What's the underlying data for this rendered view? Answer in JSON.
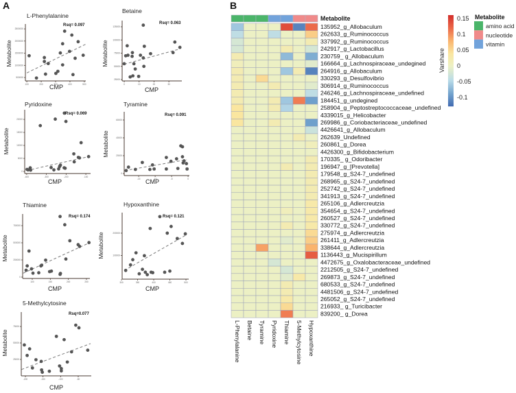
{
  "panels": {
    "a": "A",
    "b": "B"
  },
  "axis_labels": {
    "y": "Metabolite",
    "x": "CMP"
  },
  "chart_data": [
    {
      "type": "scatter",
      "title": "L-Phenylalanine",
      "rsq": "Rsq= 0.097",
      "xlabel": "CMP",
      "ylabel": "Metabolite",
      "xlim": [
        90,
        510
      ],
      "ylim": [
        360000,
        2700000
      ],
      "xticks": [
        100,
        200,
        300,
        400,
        500
      ],
      "yticks": [
        500000,
        1000000,
        1500000,
        2000000,
        2500000
      ],
      "points": [
        [
          116,
          1396000
        ],
        [
          167,
          480000
        ],
        [
          222,
          1320000
        ],
        [
          222,
          1160000
        ],
        [
          230,
          640000
        ],
        [
          249,
          1075000
        ],
        [
          302,
          670000
        ],
        [
          316,
          755000
        ],
        [
          333,
          1510000
        ],
        [
          349,
          1887000
        ],
        [
          349,
          1020000
        ],
        [
          363,
          2406000
        ],
        [
          397,
          1575000
        ],
        [
          413,
          2245000
        ],
        [
          421,
          620000
        ],
        [
          436,
          1292000
        ],
        [
          457,
          1972000
        ],
        [
          492,
          1415000
        ]
      ],
      "fit_line": [
        [
          100,
          690000
        ],
        [
          510,
          1870000
        ]
      ]
    },
    {
      "type": "scatter",
      "title": "Betaine",
      "rsq": "Rsq= 0.063",
      "xlabel": "CMP",
      "ylabel": "Metabolite",
      "xlim": [
        -1.4,
        38.7
      ],
      "ylim": [
        22400,
        136700
      ],
      "xticks": [
        0,
        10,
        20,
        30
      ],
      "yticks": [
        25000,
        50000,
        75000,
        100000,
        125000
      ],
      "points": [
        [
          0,
          55000
        ],
        [
          1,
          70000
        ],
        [
          2,
          89000
        ],
        [
          2.5,
          71000
        ],
        [
          4,
          30000
        ],
        [
          5.5,
          76000
        ],
        [
          5.3,
          69000
        ],
        [
          5.8,
          32000
        ],
        [
          6.5,
          55000
        ],
        [
          7.4,
          45000
        ],
        [
          9.7,
          31000
        ],
        [
          10.9,
          71000
        ],
        [
          12.8,
          128000
        ],
        [
          12.8,
          66000
        ],
        [
          13.2,
          50000
        ],
        [
          13.5,
          88000
        ],
        [
          17.7,
          74000
        ],
        [
          32.8,
          76000
        ],
        [
          34,
          96000
        ],
        [
          37.4,
          86000
        ]
      ],
      "fit_line": [
        [
          0,
          54000
        ],
        [
          37.4,
          83000
        ]
      ]
    },
    {
      "type": "scatter",
      "title": "Pyridoxine",
      "rsq": "Rsq= 0.069",
      "xlabel": "CMP",
      "ylabel": "Metabolite",
      "xlim": [
        -410,
        -76
      ],
      "ylim": [
        -800,
        23700
      ],
      "xticks": [
        -400,
        -300,
        -200,
        -100
      ],
      "yticks": [
        0,
        5000,
        10000,
        15000,
        20000
      ],
      "points": [
        [
          -398,
          790
        ],
        [
          -393,
          600
        ],
        [
          -382,
          1400
        ],
        [
          -380,
          500
        ],
        [
          -331,
          17600
        ],
        [
          -276,
          1490
        ],
        [
          -262,
          600
        ],
        [
          -255,
          20100
        ],
        [
          -238,
          970
        ],
        [
          -233,
          1900
        ],
        [
          -229,
          2400
        ],
        [
          -210,
          1400
        ],
        [
          -209,
          22400
        ],
        [
          -205,
          1230
        ],
        [
          -201,
          19200
        ],
        [
          -161,
          6750
        ],
        [
          -159,
          3700
        ],
        [
          -138,
          5400
        ],
        [
          -132,
          5200
        ],
        [
          -124,
          11050
        ],
        [
          -86,
          5700
        ]
      ],
      "fit_line": [
        [
          -400,
          350
        ],
        [
          -85,
          5700
        ]
      ]
    },
    {
      "type": "scatter",
      "title": "Tyramine",
      "rsq": "Rsq= 0.091",
      "xlabel": "CMP",
      "ylabel": "Metabolite",
      "xlim": [
        -19.4,
        0.4
      ],
      "ylim": [
        -2300,
        69200
      ],
      "xticks": [
        -15,
        -10,
        -5,
        0
      ],
      "yticks": [
        0,
        20000,
        40000,
        60000
      ],
      "points": [
        [
          -18.8,
          3350
        ],
        [
          -18.1,
          7200
        ],
        [
          -16,
          4600
        ],
        [
          -13.9,
          12400
        ],
        [
          -11.6,
          4600
        ],
        [
          -10.8,
          9700
        ],
        [
          -10.3,
          5100
        ],
        [
          -6.6,
          18000
        ],
        [
          -6.6,
          5100
        ],
        [
          -5.2,
          13700
        ],
        [
          -3.5,
          16500
        ],
        [
          -3.1,
          5700
        ],
        [
          -2.2,
          31000
        ],
        [
          -1.7,
          30000
        ],
        [
          -1.7,
          18800
        ],
        [
          -1.5,
          11900
        ],
        [
          -1.2,
          14200
        ],
        [
          -0.5,
          11100
        ],
        [
          -0.3,
          5100
        ]
      ],
      "fit_line": [
        [
          -19.2,
          3350
        ],
        [
          -0.4,
          15500
        ]
      ]
    },
    {
      "type": "scatter",
      "title": "Thiamine",
      "rsq": "Rsq= 0.174",
      "xlabel": "CMP",
      "ylabel": "Metabolite",
      "xlim": [
        73.4,
        259.5
      ],
      "ylim": [
        -20000,
        920000
      ],
      "xticks": [
        100,
        150,
        200,
        250
      ],
      "yticks": [
        0,
        250000,
        500000,
        750000
      ],
      "points": [
        [
          83,
          100000
        ],
        [
          86,
          163000
        ],
        [
          91,
          380000
        ],
        [
          98,
          120000
        ],
        [
          102,
          57000
        ],
        [
          118,
          63000
        ],
        [
          124,
          163000
        ],
        [
          126,
          173000
        ],
        [
          137,
          247000
        ],
        [
          148,
          80000
        ],
        [
          153,
          87000
        ],
        [
          177,
          40000
        ],
        [
          178,
          53000
        ],
        [
          177,
          883000
        ],
        [
          190,
          763000
        ],
        [
          193,
          263000
        ],
        [
          204,
          530000
        ],
        [
          227,
          473000
        ],
        [
          231,
          447000
        ],
        [
          257,
          503000
        ]
      ],
      "fit_line": [
        [
          75,
          57000
        ],
        [
          257,
          497000
        ]
      ]
    },
    {
      "type": "scatter",
      "title": "Hypoxanthine",
      "rsq": "Rsq= 0.121",
      "xlabel": "CMP",
      "ylabel": "Metabolite",
      "xlim": [
        302,
        508.5
      ],
      "ylim": [
        -6000,
        292000
      ],
      "xticks": [
        300,
        350,
        400,
        450,
        500
      ],
      "yticks": [
        100000,
        200000
      ],
      "points": [
        [
          313,
          33000
        ],
        [
          328,
          58000
        ],
        [
          335,
          81000
        ],
        [
          345,
          112000
        ],
        [
          355,
          18000
        ],
        [
          365,
          38000
        ],
        [
          371,
          99000
        ],
        [
          374,
          25000
        ],
        [
          380,
          14000
        ],
        [
          389,
          221000
        ],
        [
          392,
          25000
        ],
        [
          397,
          23000
        ],
        [
          419,
          274000
        ],
        [
          434,
          25000
        ],
        [
          442,
          200000
        ],
        [
          450,
          30000
        ],
        [
          454,
          230000
        ],
        [
          473,
          176000
        ],
        [
          489,
          154000
        ],
        [
          498,
          197000
        ]
      ],
      "fit_line": [
        [
          309,
          33000
        ],
        [
          498,
          190000
        ]
      ]
    },
    {
      "type": "scatter",
      "title": "5-Methylcytosine",
      "rsq": "Rsq=0.077",
      "xlabel": "CMP",
      "ylabel": "Metabolite",
      "xlim": [
        -211.7,
        -13
      ],
      "ylim": [
        0,
        96900
      ],
      "xticks": [
        -200,
        -150,
        -100,
        -50
      ],
      "yticks": [
        25000,
        50000,
        75000
      ],
      "points": [
        [
          -203,
          47000
        ],
        [
          -195,
          31000
        ],
        [
          -188,
          41000
        ],
        [
          -180,
          12000
        ],
        [
          -170,
          24500
        ],
        [
          -155,
          22000
        ],
        [
          -154,
          9000
        ],
        [
          -152,
          5500
        ],
        [
          -132,
          7000
        ],
        [
          -112,
          60000
        ],
        [
          -103,
          15000
        ],
        [
          -98,
          11000
        ],
        [
          -98,
          7500
        ],
        [
          -90,
          55000
        ],
        [
          -81,
          21000
        ],
        [
          -69,
          36500
        ],
        [
          -57,
          77000
        ],
        [
          -48,
          73000
        ],
        [
          -23,
          39000
        ]
      ],
      "fit_line": [
        [
          -211,
          9700
        ],
        [
          -15,
          49000
        ]
      ]
    },
    {
      "type": "heatmap",
      "title": "Metabolite",
      "colorbar_label": "Varshare",
      "colorbar_range": [
        -0.128,
        0.161
      ],
      "colorbar_ticks": [
        0.15,
        0.1,
        0.05,
        0,
        -0.05,
        -0.1
      ],
      "columns": [
        "L-Phenylalanine",
        "Betaine",
        "Tyramine",
        "Pyridoxine",
        "Thiamine",
        "5-Methylcytosine",
        "Hypoxanthine"
      ],
      "column_groups": [
        "amino acid",
        "amino acid",
        "amino acid",
        "vitamin",
        "vitamin",
        "nucleotide",
        "nucleotide"
      ],
      "legend": [
        {
          "label": "amino acid",
          "color": "#4bb56a"
        },
        {
          "label": "nucleotide",
          "color": "#f08a8a"
        },
        {
          "label": "vitamin",
          "color": "#72a3db"
        }
      ],
      "rows": [
        "135952_g_Allobaculum",
        "262633_g_Ruminococcus",
        "337992_g_Ruminococcus",
        "242917_g_Lactobacillus",
        "230759_ g_Allobaculum",
        "166664_g_Lachnospiraceae_undegined",
        "264916_g_Allobaculum",
        "330293_g_Desulfovibrio",
        "306914_g_Ruminococcus",
        "246246_g_Lachnospiraceae_undefined",
        "184451_g_undegined",
        "258904_g_Peptostreptococcaceae_undefined",
        "4339015_g_Helicobacter",
        "269986_g_Coriobacteriaceae_undefined",
        "4426641_g_Allobaculum",
        "262639_Undefined",
        "260861_g_Dorea",
        "4426300_g_Bifidobacterium",
        "170335_ g_Odoribacter",
        "196947_g_[Prevotella]",
        "179548_g_S24-7_undefined",
        "268965_g_S24-7_undefined",
        "252742_g_S24-7_undefined",
        "341913_g_S24-7_undefined",
        "265106_g_Adlercreutzia",
        "354654_g_S24-7_undefined",
        "260527_g_S24-7_undefined",
        "330772_g_S24-7_undefined",
        "275974_g_Adlercreutzia",
        "261411_g_Adlercreutzia",
        "338644_g_Adlercreutzia",
        "1136443_g_Mucispirillum",
        "4472675_g_Oxalobacteraceae_undefined",
        "2212505_g_S24-7_undefined",
        "269873_g_S24-7_undefined",
        "680533_g_S24-7_undefined",
        "4481506_g_S24-7_undefined",
        "265052_g_S24-7_undefined",
        "216933_ g_Turicibacter",
        "839200_ g_Dorea"
      ],
      "values": [
        [
          -0.06,
          0,
          0,
          0,
          0.14,
          -0.11,
          0.12
        ],
        [
          -0.04,
          0,
          0,
          -0.04,
          0,
          0,
          0.06
        ],
        [
          -0.02,
          0,
          0,
          0,
          0,
          0,
          0.02
        ],
        [
          -0.02,
          0,
          0,
          0,
          0.02,
          0,
          -0.02
        ],
        [
          0.02,
          0,
          0,
          0,
          -0.07,
          0,
          -0.08
        ],
        [
          0.01,
          0,
          0,
          0,
          0,
          0,
          -0.01
        ],
        [
          0.02,
          0,
          0,
          0,
          -0.06,
          0.02,
          -0.11
        ],
        [
          0.02,
          0,
          0.05,
          0,
          0,
          0,
          0
        ],
        [
          0.02,
          0,
          0,
          0.02,
          0,
          0,
          -0.01
        ],
        [
          0.02,
          0,
          0,
          0,
          0,
          0,
          -0.04
        ],
        [
          0.02,
          0,
          0,
          0.02,
          -0.06,
          0.11,
          -0.09
        ],
        [
          0.04,
          0,
          0,
          0.02,
          -0.05,
          0,
          0
        ],
        [
          0.04,
          0,
          0,
          0,
          0,
          0,
          0
        ],
        [
          0.04,
          0,
          0,
          0.02,
          0,
          0,
          -0.09
        ],
        [
          0,
          0,
          0,
          0,
          0,
          0,
          -0.03
        ],
        [
          0,
          0,
          0,
          0,
          0,
          0.02,
          0
        ],
        [
          0,
          0,
          0,
          0,
          0,
          0,
          0.01
        ],
        [
          0,
          0,
          0,
          0,
          0,
          0,
          0
        ],
        [
          0,
          0,
          0,
          0,
          0,
          0,
          0.02
        ],
        [
          0,
          0,
          0,
          0,
          0.02,
          0,
          0.02
        ],
        [
          0,
          0,
          0,
          0,
          0,
          0,
          0.02
        ],
        [
          0,
          0,
          0,
          0,
          0,
          0,
          0.02
        ],
        [
          0,
          0,
          0,
          0,
          0,
          0,
          0.02
        ],
        [
          0,
          0,
          0,
          0,
          0,
          0,
          0.02
        ],
        [
          0,
          0,
          0,
          0,
          0,
          0,
          0.03
        ],
        [
          0,
          0,
          0,
          0,
          0.01,
          0,
          0.03
        ],
        [
          0,
          0,
          0,
          0,
          0,
          0,
          0.03
        ],
        [
          0,
          0,
          0,
          0,
          0.02,
          0,
          0.03
        ],
        [
          0,
          0,
          0,
          0,
          0,
          0,
          0.05
        ],
        [
          0,
          0,
          0,
          0,
          -0.01,
          0,
          0.06
        ],
        [
          0,
          0,
          0.09,
          0,
          0,
          0,
          0.08
        ],
        [
          0,
          0,
          0,
          0,
          0,
          0,
          0.13
        ],
        [
          0,
          0,
          0,
          -0.02,
          0,
          0,
          0
        ],
        [
          0,
          0,
          0,
          0,
          -0.02,
          0,
          0
        ],
        [
          0,
          0,
          0,
          0,
          -0.01,
          0.03,
          0
        ],
        [
          0,
          0,
          0,
          0,
          0.02,
          0,
          0
        ],
        [
          0,
          0,
          0,
          0,
          0.02,
          0,
          0
        ],
        [
          0,
          0,
          0,
          0,
          0.03,
          0,
          0
        ],
        [
          0,
          0,
          0,
          0,
          0.05,
          0,
          0
        ],
        [
          0,
          0,
          0,
          0,
          0.11,
          0,
          0
        ]
      ]
    }
  ]
}
